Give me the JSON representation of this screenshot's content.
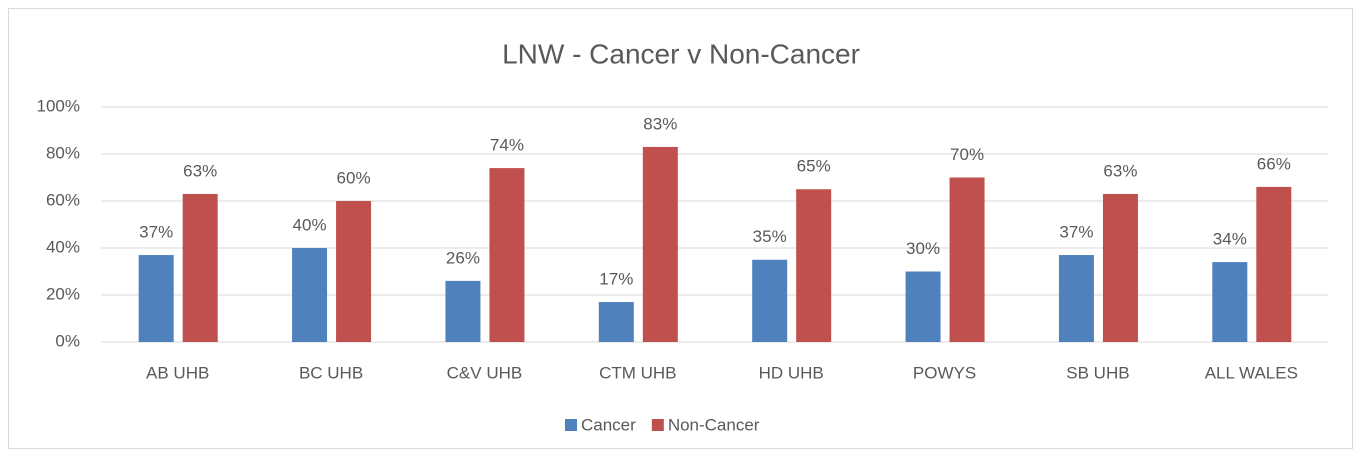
{
  "chart_data": {
    "type": "bar",
    "title": "LNW - Cancer v Non-Cancer",
    "categories": [
      "AB UHB",
      "BC UHB",
      "C&V UHB",
      "CTM UHB",
      "HD UHB",
      "POWYS",
      "SB UHB",
      "ALL WALES"
    ],
    "series": [
      {
        "name": "Cancer",
        "color": "#4f81bd",
        "values": [
          37,
          40,
          26,
          17,
          35,
          30,
          37,
          34
        ],
        "value_labels": [
          "37%",
          "40%",
          "26%",
          "17%",
          "35%",
          "30%",
          "37%",
          "34%"
        ]
      },
      {
        "name": "Non-Cancer",
        "color": "#c0504d",
        "values": [
          63,
          60,
          74,
          83,
          65,
          70,
          63,
          66
        ],
        "value_labels": [
          "63%",
          "60%",
          "74%",
          "83%",
          "65%",
          "70%",
          "63%",
          "66%"
        ]
      }
    ],
    "ylim": [
      0,
      100
    ],
    "yticks": [
      {
        "value": 0,
        "label": "0%"
      },
      {
        "value": 20,
        "label": "20%"
      },
      {
        "value": 40,
        "label": "40%"
      },
      {
        "value": 60,
        "label": "60%"
      },
      {
        "value": 80,
        "label": "80%"
      },
      {
        "value": 100,
        "label": "100%"
      }
    ],
    "grid": true,
    "legend": "bottom"
  }
}
